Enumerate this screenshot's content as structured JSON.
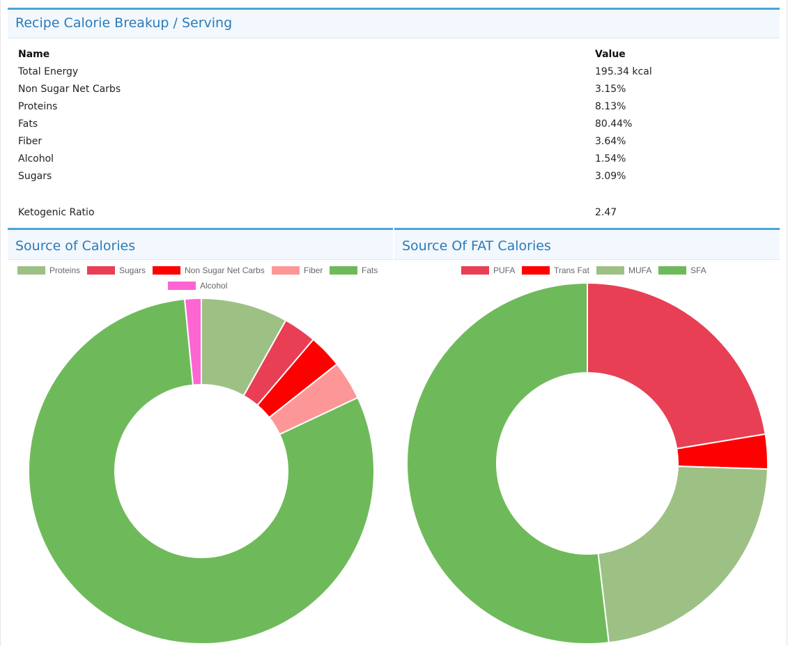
{
  "breakup": {
    "title": "Recipe Calorie Breakup / Serving",
    "col_name": "Name",
    "col_value": "Value",
    "rows": [
      {
        "name": "Total Energy",
        "value": "195.34 kcal"
      },
      {
        "name": "Non Sugar Net Carbs",
        "value": "3.15%"
      },
      {
        "name": "Proteins",
        "value": "8.13%"
      },
      {
        "name": "Fats",
        "value": "80.44%"
      },
      {
        "name": "Fiber",
        "value": "3.64%"
      },
      {
        "name": "Alcohol",
        "value": "1.54%"
      },
      {
        "name": "Sugars",
        "value": "3.09%"
      }
    ],
    "keto": {
      "name": "Ketogenic Ratio",
      "value": "2.47"
    }
  },
  "calories_panel": {
    "title": "Source of Calories"
  },
  "fat_panel": {
    "title": "Source Of FAT Calories"
  },
  "chart_data": [
    {
      "type": "pie",
      "variant": "doughnut",
      "title": "Source of Calories",
      "labels": [
        "Proteins",
        "Sugars",
        "Non Sugar Net Carbs",
        "Fiber",
        "Fats",
        "Alcohol"
      ],
      "values": [
        8.13,
        3.09,
        3.15,
        3.64,
        80.44,
        1.54
      ],
      "colors": [
        "#9dc184",
        "#e83f55",
        "#fd0000",
        "#fd9797",
        "#6eba5a",
        "#fd65d2"
      ],
      "legend": "top"
    },
    {
      "type": "pie",
      "variant": "doughnut",
      "title": "Source Of FAT Calories",
      "labels": [
        "PUFA",
        "Trans Fat",
        "MUFA",
        "SFA"
      ],
      "values": [
        22.4,
        3.1,
        22.6,
        51.9
      ],
      "colors": [
        "#e83f55",
        "#fd0000",
        "#9dc184",
        "#6eba5a"
      ],
      "legend": "top"
    }
  ]
}
